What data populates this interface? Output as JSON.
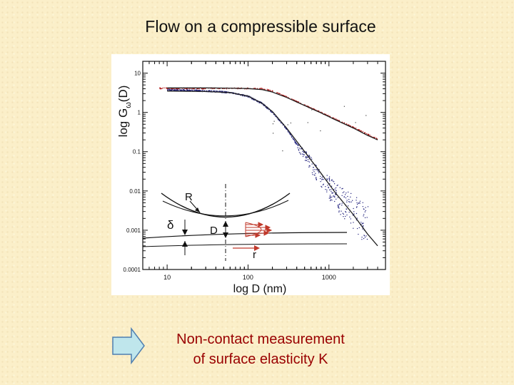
{
  "slide": {
    "title": "Flow on a compressible surface",
    "caption_line1": "Non-contact measurement",
    "caption_line2": "of surface elasticity K"
  },
  "colors": {
    "background": "#fbefc9",
    "caption": "#990000",
    "arrow_fill": "#bfe6ec",
    "arrow_stroke": "#4f7fb0",
    "red_series": "#b01818",
    "blue_series": "#1c1c7a",
    "fit_line": "#222222"
  },
  "icons": {
    "arrow": "right-arrow-icon"
  },
  "chart_data": {
    "type": "scatter",
    "title": "",
    "xlabel": "log D (nm)",
    "ylabel": "log G",
    "ylabel_sub": "ω",
    "ylabel_tail": "(D)",
    "xscale": "log",
    "yscale": "log",
    "xlim": [
      5,
      5000
    ],
    "ylim": [
      0.0001,
      20
    ],
    "x_ticks": [
      10,
      100,
      1000
    ],
    "x_tick_labels": [
      "10",
      "100",
      "1000"
    ],
    "y_ticks": [
      0.0001,
      0.001,
      0.01,
      0.1,
      1,
      10
    ],
    "y_tick_labels": [
      "0.0001",
      "0.001",
      "0.01",
      "0.1",
      "1",
      "10"
    ],
    "grid": false,
    "legend": "none",
    "series": [
      {
        "color": "red",
        "x": [
          8,
          15,
          30,
          60,
          100,
          150,
          200,
          300,
          500,
          800,
          1200,
          2000,
          3000,
          4000
        ],
        "y": [
          4.2,
          4.2,
          4.2,
          4.2,
          4.2,
          4.1,
          3.6,
          2.5,
          1.55,
          1.0,
          0.68,
          0.42,
          0.28,
          0.21
        ]
      },
      {
        "color": "blue",
        "x": [
          10,
          20,
          40,
          60,
          100,
          150,
          200,
          300,
          400,
          500,
          700,
          1000,
          1500,
          2000,
          3000
        ],
        "y": [
          3.8,
          3.7,
          3.5,
          3.3,
          2.6,
          1.7,
          1.0,
          0.38,
          0.15,
          0.08,
          0.03,
          0.012,
          0.005,
          0.003,
          0.0012
        ]
      }
    ],
    "fit_lines": [
      {
        "x": [
          10,
          30,
          60,
          100,
          150,
          200,
          300,
          500,
          800,
          1200,
          2000,
          3000,
          4000
        ],
        "y": [
          4.2,
          4.2,
          4.15,
          4.05,
          3.8,
          3.3,
          2.4,
          1.5,
          0.97,
          0.65,
          0.4,
          0.26,
          0.2
        ]
      },
      {
        "x": [
          10,
          30,
          60,
          100,
          150,
          200,
          300,
          500,
          800,
          1200,
          2000,
          3000,
          4000
        ],
        "y": [
          3.5,
          3.4,
          3.2,
          2.6,
          1.7,
          1.05,
          0.4,
          0.1,
          0.028,
          0.009,
          0.0025,
          0.0008,
          0.0004
        ]
      }
    ],
    "inset": {
      "label_R": "R",
      "label_delta": "δ",
      "label_D": "D",
      "label_r": "r"
    }
  }
}
